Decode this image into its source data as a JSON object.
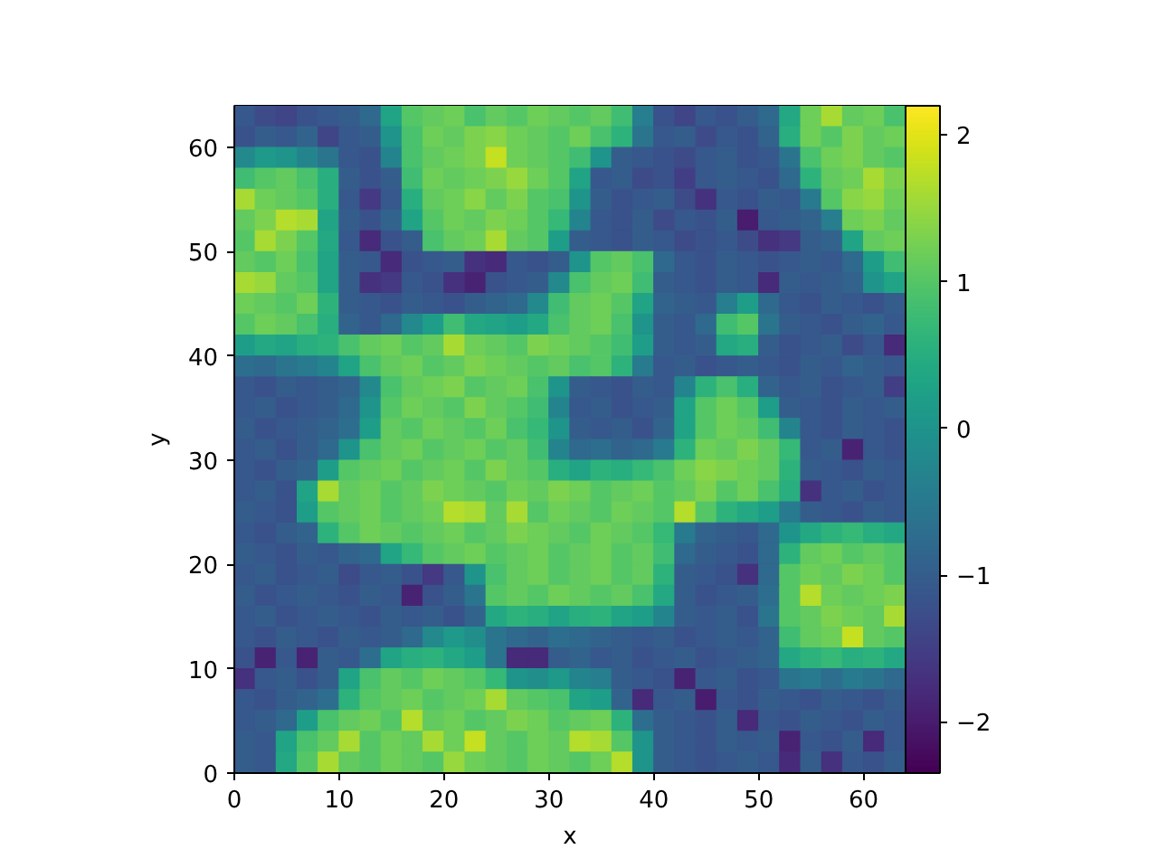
{
  "chart_data": {
    "type": "heatmap",
    "xlabel": "x",
    "ylabel": "y",
    "xlim": [
      0,
      64
    ],
    "ylim": [
      0,
      64
    ],
    "xticks": [
      0,
      10,
      20,
      30,
      40,
      50,
      60
    ],
    "yticks": [
      0,
      10,
      20,
      30,
      40,
      50,
      60
    ],
    "clim": [
      -2.35,
      2.2
    ],
    "cticks": [
      {
        "value": -2,
        "label": "−2"
      },
      {
        "value": -1,
        "label": "−1"
      },
      0,
      1,
      2
    ],
    "cells": [
      [
        -1.1,
        -1.3,
        -1.4,
        -1.2,
        -1.1,
        -1.0,
        -0.8,
        0.3,
        1.0,
        1.1,
        1.2,
        0.9,
        1.1,
        1.0,
        1.2,
        1.1,
        1.0,
        1.1,
        0.8,
        -0.4,
        -1.2,
        -1.4,
        -1.1,
        -1.2,
        -1.0,
        -0.8,
        0.4,
        1.2,
        1.6,
        1.1,
        1.2,
        0.9
      ],
      [
        -1.2,
        -1.0,
        -1.1,
        -0.9,
        -1.4,
        -1.1,
        -1.0,
        0.0,
        0.9,
        1.2,
        1.1,
        1.3,
        1.4,
        1.2,
        1.1,
        1.0,
        1.2,
        0.9,
        0.6,
        -0.6,
        -1.1,
        -1.0,
        -1.3,
        -1.1,
        -1.2,
        -0.9,
        0.5,
        1.2,
        1.0,
        1.3,
        1.1,
        1.2
      ],
      [
        -0.2,
        0.1,
        0.0,
        -0.3,
        -0.6,
        -1.1,
        -1.2,
        -0.3,
        0.9,
        1.1,
        1.2,
        1.3,
        1.8,
        1.2,
        1.1,
        1.0,
        0.8,
        0.0,
        -1.0,
        -1.1,
        -1.2,
        -1.3,
        -1.1,
        -1.0,
        -1.2,
        -1.1,
        -0.6,
        0.9,
        1.2,
        1.3,
        1.1,
        1.0
      ],
      [
        0.8,
        1.0,
        1.1,
        0.9,
        0.5,
        -1.0,
        -1.2,
        -1.0,
        0.8,
        1.2,
        1.1,
        1.2,
        1.3,
        1.5,
        1.2,
        1.0,
        0.3,
        -1.1,
        -1.0,
        -1.3,
        -1.2,
        -1.5,
        -1.1,
        -1.0,
        -1.1,
        -1.2,
        -0.8,
        0.6,
        1.1,
        1.2,
        1.6,
        1.3
      ],
      [
        1.6,
        1.2,
        1.1,
        1.0,
        0.5,
        -1.1,
        -1.6,
        -1.1,
        0.5,
        1.1,
        1.2,
        1.4,
        1.1,
        1.3,
        1.0,
        0.9,
        0.0,
        -1.0,
        -1.2,
        -1.1,
        -1.0,
        -1.3,
        -1.7,
        -1.1,
        -1.2,
        -1.0,
        -1.1,
        -0.5,
        1.0,
        1.4,
        1.5,
        1.2
      ],
      [
        1.1,
        1.3,
        1.7,
        1.6,
        0.3,
        -1.0,
        -1.2,
        -0.9,
        0.3,
        1.0,
        1.2,
        1.1,
        1.3,
        1.2,
        1.0,
        0.7,
        -0.3,
        -1.1,
        -1.2,
        -1.0,
        -1.3,
        -1.1,
        -1.2,
        -1.0,
        -2.0,
        -1.1,
        -1.0,
        -0.9,
        -0.4,
        1.2,
        1.3,
        1.1
      ],
      [
        1.0,
        1.6,
        1.3,
        1.0,
        0.4,
        -1.1,
        -1.8,
        -1.2,
        -1.0,
        0.9,
        1.1,
        1.2,
        1.6,
        1.1,
        1.0,
        0.2,
        -1.0,
        -1.1,
        -1.2,
        -1.0,
        -1.1,
        -1.3,
        -1.2,
        -1.1,
        -1.3,
        -1.7,
        -1.6,
        -1.0,
        -0.9,
        0.3,
        1.1,
        1.2
      ],
      [
        1.1,
        1.0,
        1.2,
        0.9,
        0.3,
        -1.0,
        -1.1,
        -1.8,
        -1.2,
        -1.1,
        -1.0,
        -1.7,
        -1.8,
        -1.1,
        -1.2,
        -1.0,
        0.0,
        1.0,
        1.1,
        0.9,
        -0.8,
        -1.1,
        -1.2,
        -1.0,
        -1.1,
        -1.2,
        -1.1,
        -1.0,
        -1.1,
        -0.8,
        0.2,
        0.8
      ],
      [
        1.6,
        1.5,
        1.1,
        1.0,
        0.3,
        -1.0,
        -1.7,
        -1.6,
        -1.1,
        -1.2,
        -1.7,
        -1.9,
        -1.2,
        -1.1,
        -1.0,
        -0.2,
        0.9,
        1.1,
        1.2,
        0.8,
        -1.0,
        -1.1,
        -1.2,
        -1.0,
        -1.1,
        -1.8,
        -1.0,
        -1.1,
        -1.0,
        -0.9,
        0.0,
        0.3
      ],
      [
        1.2,
        1.1,
        1.0,
        1.2,
        0.6,
        -1.0,
        -1.1,
        -1.2,
        -1.0,
        -1.1,
        -1.2,
        -1.0,
        -0.9,
        -0.8,
        -0.2,
        0.8,
        1.1,
        1.2,
        1.0,
        0.3,
        -0.9,
        -1.0,
        -1.1,
        -0.4,
        0.2,
        -0.8,
        -1.1,
        -1.2,
        -1.0,
        -1.1,
        -1.2,
        -1.0
      ],
      [
        1.0,
        1.2,
        1.1,
        0.9,
        0.5,
        -0.9,
        -1.1,
        -0.8,
        -0.2,
        0.2,
        0.8,
        0.4,
        0.3,
        0.2,
        0.4,
        0.9,
        1.1,
        1.2,
        0.9,
        0.0,
        -1.0,
        -1.1,
        -0.8,
        0.8,
        1.0,
        -0.6,
        -1.0,
        -1.1,
        -1.2,
        -1.0,
        -0.9,
        -1.1
      ],
      [
        0.2,
        0.4,
        0.3,
        0.5,
        0.6,
        0.9,
        1.1,
        1.2,
        1.0,
        1.1,
        1.6,
        1.2,
        1.1,
        1.0,
        1.3,
        1.2,
        1.1,
        1.0,
        0.8,
        0.2,
        -1.0,
        -1.1,
        -1.0,
        0.4,
        0.5,
        -1.0,
        -1.2,
        -1.1,
        -1.0,
        -1.3,
        -1.1,
        -1.8
      ],
      [
        -0.7,
        -0.8,
        -0.6,
        -0.5,
        -0.3,
        0.3,
        0.9,
        1.1,
        1.2,
        1.0,
        1.1,
        1.3,
        1.2,
        1.1,
        1.0,
        1.1,
        0.9,
        1.0,
        0.6,
        -0.5,
        -1.1,
        -1.0,
        -1.2,
        -1.1,
        -1.0,
        -1.1,
        -1.2,
        -1.0,
        -1.1,
        -0.9,
        -1.0,
        -1.1
      ],
      [
        -1.1,
        -1.2,
        -1.0,
        -1.1,
        -1.0,
        -0.9,
        -0.2,
        0.9,
        1.1,
        1.2,
        1.3,
        1.0,
        1.1,
        1.2,
        0.9,
        0.0,
        -1.0,
        -1.1,
        -1.2,
        -1.0,
        -1.1,
        -0.3,
        0.6,
        0.9,
        0.5,
        -0.9,
        -1.1,
        -1.0,
        -1.2,
        -1.1,
        -1.0,
        -1.5
      ],
      [
        -1.1,
        -1.0,
        -1.2,
        -1.1,
        -1.0,
        -0.8,
        0.0,
        1.0,
        1.2,
        1.1,
        1.0,
        1.3,
        1.1,
        1.0,
        0.8,
        -0.3,
        -1.1,
        -1.0,
        -1.2,
        -1.1,
        -1.0,
        0.3,
        1.0,
        1.2,
        1.0,
        0.2,
        -1.0,
        -1.1,
        -1.2,
        -1.0,
        -1.1,
        -1.0
      ],
      [
        -1.0,
        -1.2,
        -1.1,
        -1.0,
        -0.9,
        -0.7,
        0.2,
        1.1,
        1.0,
        1.2,
        1.1,
        1.0,
        1.2,
        0.9,
        0.7,
        0.0,
        -1.0,
        -1.1,
        -1.0,
        -1.2,
        -0.9,
        0.3,
        1.0,
        1.2,
        1.1,
        0.8,
        -0.3,
        -1.1,
        -1.2,
        -1.0,
        -1.1,
        -1.2
      ],
      [
        -1.1,
        -1.0,
        -1.2,
        -1.0,
        -0.8,
        0.0,
        0.9,
        1.1,
        1.2,
        1.0,
        1.1,
        1.2,
        1.0,
        1.1,
        0.8,
        -0.3,
        -0.8,
        -0.7,
        -0.9,
        -0.8,
        -0.5,
        0.6,
        1.2,
        1.1,
        1.3,
        1.1,
        0.7,
        -1.1,
        -1.0,
        -1.9,
        -1.1,
        -1.2
      ],
      [
        -1.1,
        -1.2,
        -1.0,
        -0.9,
        0.2,
        1.0,
        1.1,
        1.2,
        1.0,
        1.1,
        1.2,
        1.0,
        1.3,
        1.1,
        1.0,
        0.5,
        0.3,
        0.6,
        0.5,
        0.7,
        0.9,
        1.2,
        1.4,
        1.3,
        1.2,
        1.1,
        0.6,
        -1.0,
        -1.1,
        -1.2,
        -1.0,
        -1.1
      ],
      [
        -1.1,
        -1.0,
        -1.2,
        0.3,
        1.6,
        1.1,
        1.2,
        1.0,
        1.1,
        1.3,
        1.2,
        1.1,
        1.0,
        1.2,
        1.1,
        1.3,
        1.2,
        1.0,
        1.1,
        1.2,
        1.0,
        1.1,
        1.3,
        1.0,
        1.2,
        0.9,
        0.5,
        -1.7,
        -1.1,
        -1.0,
        -1.2,
        -1.1
      ],
      [
        -1.0,
        -1.1,
        -1.2,
        0.2,
        1.0,
        1.1,
        1.2,
        1.0,
        1.1,
        1.2,
        1.7,
        1.6,
        1.1,
        1.6,
        1.0,
        1.2,
        1.1,
        1.0,
        1.2,
        1.1,
        1.0,
        1.7,
        1.0,
        0.6,
        0.4,
        0.2,
        -0.5,
        -1.0,
        -1.1,
        -1.2,
        -1.0,
        -1.1
      ],
      [
        -1.1,
        -1.2,
        -1.0,
        -0.9,
        0.6,
        1.0,
        1.2,
        1.1,
        1.0,
        1.1,
        1.2,
        1.0,
        1.1,
        1.3,
        1.2,
        1.1,
        1.0,
        1.2,
        1.1,
        1.0,
        0.7,
        -0.5,
        -0.9,
        -1.0,
        -1.1,
        -0.8,
        0.0,
        0.4,
        0.6,
        0.7,
        0.5,
        0.4
      ],
      [
        -1.0,
        -1.1,
        -1.2,
        -1.0,
        -1.1,
        -0.9,
        -0.8,
        0.3,
        0.7,
        1.0,
        1.1,
        1.2,
        1.0,
        1.1,
        1.2,
        1.0,
        1.1,
        1.2,
        1.0,
        1.1,
        0.8,
        -0.8,
        -1.0,
        -1.1,
        -1.2,
        -0.8,
        0.6,
        1.1,
        1.2,
        1.0,
        1.1,
        1.0
      ],
      [
        -1.1,
        -1.0,
        -1.2,
        -1.1,
        -1.0,
        -1.3,
        -1.1,
        -1.0,
        -1.2,
        -1.6,
        -1.1,
        0.0,
        0.9,
        1.1,
        1.2,
        1.0,
        1.1,
        1.2,
        1.0,
        1.1,
        0.6,
        -1.0,
        -1.1,
        -1.2,
        -1.7,
        -0.8,
        1.0,
        1.2,
        1.1,
        1.3,
        1.2,
        1.0
      ],
      [
        -1.0,
        -1.2,
        -1.1,
        -1.0,
        -1.1,
        -1.2,
        -1.0,
        -1.1,
        -1.9,
        -1.2,
        -1.0,
        -0.6,
        1.0,
        1.1,
        1.0,
        1.2,
        1.1,
        1.0,
        1.1,
        0.9,
        0.4,
        -1.0,
        -1.2,
        -1.1,
        -1.0,
        -0.7,
        1.0,
        1.7,
        1.2,
        1.1,
        1.2,
        1.3
      ],
      [
        -1.1,
        -1.0,
        -1.2,
        -1.1,
        -1.0,
        -1.1,
        -1.2,
        -1.0,
        -1.1,
        -1.0,
        -1.2,
        -0.9,
        0.4,
        0.6,
        0.5,
        0.3,
        0.5,
        0.6,
        0.3,
        0.2,
        -0.3,
        -1.0,
        -1.1,
        -1.0,
        -1.2,
        -0.6,
        1.0,
        1.1,
        1.3,
        1.2,
        1.1,
        1.6
      ],
      [
        -1.1,
        -1.2,
        -1.0,
        -1.1,
        -1.2,
        -1.0,
        -1.1,
        -1.0,
        -0.8,
        -0.2,
        0.1,
        -0.1,
        -0.6,
        -0.8,
        -0.9,
        -0.7,
        -0.8,
        -0.9,
        -1.0,
        -1.1,
        -1.0,
        -1.2,
        -1.1,
        -1.0,
        -1.1,
        -0.9,
        0.8,
        1.1,
        1.2,
        1.8,
        1.1,
        1.0
      ],
      [
        -1.2,
        -1.9,
        -1.1,
        -1.9,
        -1.0,
        -1.1,
        -0.7,
        0.3,
        0.5,
        0.6,
        0.4,
        0.2,
        -0.6,
        -1.8,
        -1.8,
        -1.0,
        -0.9,
        -1.1,
        -1.0,
        -1.2,
        -1.1,
        -1.0,
        -1.2,
        -1.1,
        -1.0,
        -0.9,
        0.4,
        0.6,
        0.7,
        0.5,
        0.6,
        0.4
      ],
      [
        -1.7,
        -1.1,
        -1.0,
        -1.2,
        -1.0,
        0.3,
        0.9,
        1.1,
        1.0,
        1.2,
        1.1,
        1.0,
        0.7,
        0.0,
        -0.1,
        0.1,
        -0.3,
        -0.4,
        -1.0,
        -1.1,
        -1.2,
        -1.9,
        -1.1,
        -1.0,
        -1.2,
        -1.1,
        -0.6,
        -0.5,
        -0.7,
        -0.5,
        -0.6,
        -0.8
      ],
      [
        -1.1,
        -1.2,
        -1.0,
        -0.9,
        -0.7,
        0.6,
        1.0,
        1.1,
        1.2,
        1.0,
        1.1,
        1.2,
        1.6,
        1.1,
        1.0,
        0.9,
        0.3,
        0.2,
        -0.9,
        -1.8,
        -1.1,
        -1.0,
        -2.0,
        -1.1,
        -1.2,
        -1.0,
        -1.1,
        -1.2,
        -1.0,
        -1.1,
        -1.2,
        -1.0
      ],
      [
        -1.1,
        -1.0,
        -0.8,
        0.2,
        0.9,
        1.1,
        1.2,
        1.0,
        1.7,
        1.1,
        1.2,
        1.0,
        1.1,
        1.3,
        1.2,
        1.0,
        1.1,
        1.2,
        0.6,
        -0.7,
        -1.0,
        -1.1,
        -1.2,
        -1.0,
        -1.8,
        -1.1,
        -1.2,
        -1.0,
        -1.1,
        -1.2,
        -1.0,
        -1.1
      ],
      [
        -1.0,
        -1.1,
        0.3,
        0.9,
        1.1,
        1.6,
        1.0,
        1.2,
        1.1,
        1.6,
        1.2,
        1.8,
        1.1,
        1.0,
        1.2,
        1.1,
        1.7,
        1.6,
        1.0,
        0.0,
        -1.0,
        -1.1,
        -1.2,
        -1.0,
        -1.1,
        -1.0,
        -1.9,
        -1.1,
        -1.2,
        -1.0,
        -1.8,
        -1.1
      ],
      [
        -1.0,
        -1.1,
        0.4,
        1.0,
        1.6,
        1.1,
        1.0,
        1.2,
        1.1,
        1.0,
        1.5,
        1.2,
        1.1,
        1.0,
        1.2,
        1.1,
        1.0,
        1.2,
        1.7,
        0.0,
        -1.0,
        -1.1,
        -1.2,
        -1.1,
        -1.0,
        -1.1,
        -1.8,
        -1.0,
        -1.7,
        -1.1,
        -1.2,
        -1.0
      ]
    ]
  }
}
